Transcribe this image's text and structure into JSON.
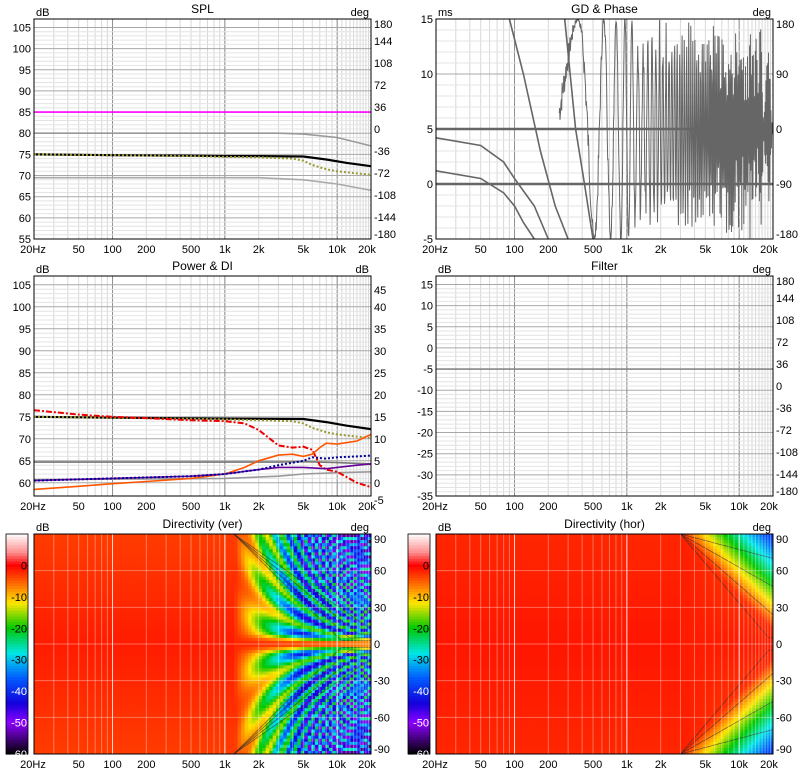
{
  "panels": [
    {
      "id": "spl",
      "title": "SPL",
      "left_unit": "dB",
      "right_unit": "deg",
      "left_ticks": [
        "105",
        "100",
        "95",
        "90",
        "85",
        "80",
        "75",
        "70",
        "65",
        "60",
        "55"
      ],
      "right_ticks": [
        "180",
        "144",
        "108",
        "72",
        "36",
        "0",
        "-36",
        "-72",
        "-108",
        "-144",
        "-180"
      ],
      "x_ticks": [
        "20Hz",
        "50",
        "100",
        "200",
        "500",
        "1k",
        "2k",
        "5k",
        "10k",
        "20k"
      ],
      "chart_data": {
        "type": "line",
        "xscale": "log",
        "xlim": [
          20,
          20000
        ],
        "ylim": [
          55,
          107
        ],
        "series": [
          {
            "color": "#ff00ff",
            "x": [
              20,
              20000
            ],
            "y": [
              85,
              85
            ]
          },
          {
            "color": "#999999",
            "x": [
              20,
              3000,
              5000,
              10000,
              20000
            ],
            "y": [
              80,
              80,
              79.8,
              79,
              77
            ]
          },
          {
            "color": "#aaaaaa",
            "x": [
              20,
              2000,
              5000,
              10000,
              20000
            ],
            "y": [
              69.5,
              69.5,
              69,
              68,
              66.5
            ]
          },
          {
            "color": "#000000",
            "x": [
              20,
              50,
              100,
              500,
              1000,
              2000,
              5000,
              8000,
              12000,
              20000
            ],
            "y": [
              75,
              74.9,
              74.8,
              74.7,
              74.6,
              74.6,
              74.5,
              73.8,
              73,
              72.2
            ]
          },
          {
            "color": "#999933",
            "dash": true,
            "x": [
              20,
              100,
              500,
              1000,
              2000,
              4000,
              5000,
              6000,
              8000,
              10000,
              15000,
              20000
            ],
            "y": [
              75,
              74.8,
              74.6,
              74.4,
              74.3,
              74,
              73.5,
              72.5,
              71.5,
              71,
              70.5,
              70.2
            ]
          }
        ]
      }
    },
    {
      "id": "gd",
      "title": "GD & Phase",
      "left_unit": "ms",
      "right_unit": "deg",
      "left_ticks": [
        "15",
        "10",
        "5",
        "0",
        "-5"
      ],
      "right_ticks": [
        "180",
        "90",
        "0",
        "-90",
        "-180"
      ],
      "x_ticks": [
        "20Hz",
        "50",
        "100",
        "200",
        "500",
        "1k",
        "2k",
        "5k",
        "10k",
        "20k"
      ],
      "chart_data": {
        "type": "line",
        "xscale": "log",
        "xlim": [
          20,
          20000
        ],
        "ylim": [
          -5,
          15
        ],
        "series": [
          {
            "color": "#666666",
            "x": [
              20,
              20000
            ],
            "y": [
              5,
              5
            ]
          },
          {
            "color": "#666666",
            "x": [
              20,
              20000
            ],
            "y": [
              0,
              0
            ]
          },
          {
            "color": "#666666",
            "x": [
              20,
              50,
              80,
              100,
              150,
              200
            ],
            "y": [
              4.2,
              3.5,
              2,
              0.5,
              -2,
              -5
            ]
          },
          {
            "color": "#666666",
            "x": [
              20,
              50,
              80,
              100,
              120,
              150
            ],
            "y": [
              1.2,
              0.5,
              -0.8,
              -2,
              -3.5,
              -5
            ]
          },
          {
            "color": "#666666",
            "x": [
              90,
              120,
              170,
              230,
              300
            ],
            "y": [
              15,
              10,
              3,
              -2,
              -5
            ]
          },
          {
            "color": "#666666",
            "x": [
              280,
              350,
              420,
              500
            ],
            "y": [
              15,
              5,
              0,
              -5
            ]
          }
        ],
        "phase_oscillation": {
          "start_hz": 250,
          "end_hz": 20000,
          "range_deg": [
            -180,
            180
          ]
        }
      }
    },
    {
      "id": "power",
      "title": "Power & DI",
      "left_unit": "dB",
      "right_unit": "dB",
      "left_ticks": [
        "105",
        "100",
        "95",
        "90",
        "85",
        "80",
        "75",
        "70",
        "65",
        "60"
      ],
      "right_ticks": [
        "45",
        "40",
        "35",
        "30",
        "25",
        "20",
        "15",
        "10",
        "5",
        "0",
        "-5"
      ],
      "x_ticks": [
        "20Hz",
        "50",
        "100",
        "200",
        "500",
        "1k",
        "2k",
        "5k",
        "10k",
        "20k"
      ],
      "chart_data": {
        "type": "line",
        "xscale": "log",
        "xlim": [
          20,
          20000
        ],
        "ylim": [
          57,
          107
        ],
        "series": [
          {
            "color": "#000000",
            "x": [
              20,
              100,
              1000,
              5000,
              8000,
              12000,
              20000
            ],
            "y": [
              75,
              74.8,
              74.6,
              74.5,
              73.8,
              73,
              72.2
            ]
          },
          {
            "color": "#999933",
            "dash": true,
            "x": [
              20,
              100,
              1000,
              4000,
              5000,
              6000,
              8000,
              10000,
              15000,
              20000
            ],
            "y": [
              75,
              74.8,
              74.4,
              74,
              73.5,
              72.5,
              71.5,
              71,
              70.5,
              70.2
            ]
          },
          {
            "color": "#777777",
            "x": [
              20,
              1000,
              3000,
              5000,
              10000,
              20000
            ],
            "y": [
              64.7,
              64.7,
              64.7,
              64.8,
              64.6,
              64.3
            ]
          },
          {
            "color": "#999999",
            "x": [
              20,
              1000,
              3000,
              5000,
              10000,
              20000
            ],
            "y": [
              60.7,
              61,
              61.5,
              62,
              62.3,
              62.5
            ]
          },
          {
            "color": "#ee0000",
            "dashdot": true,
            "x": [
              20,
              50,
              100,
              200,
              500,
              1000,
              1500,
              2000,
              3000,
              4000,
              5000,
              6000,
              7000,
              8000,
              10000,
              15000,
              20000
            ],
            "y": [
              76.5,
              75.5,
              75,
              74.7,
              74.2,
              74,
              73.5,
              72,
              68.5,
              68,
              68.2,
              67.5,
              64,
              63,
              62.5,
              60,
              59
            ]
          },
          {
            "color": "#ff5500",
            "x": [
              20,
              50,
              100,
              200,
              500,
              1000,
              1500,
              2000,
              3000,
              4000,
              5000,
              6000,
              7000,
              8000,
              10000,
              15000,
              20000
            ],
            "y": [
              58.5,
              59.2,
              59.8,
              60.3,
              61,
              62,
              63.5,
              65,
              66.3,
              66.5,
              66,
              66.5,
              68,
              69,
              68.8,
              69.5,
              71
            ]
          },
          {
            "color": "#660099",
            "x": [
              20,
              100,
              500,
              1000,
              2000,
              3000,
              5000,
              8000,
              10000,
              15000,
              20000
            ],
            "y": [
              60.5,
              61,
              61.5,
              62,
              63,
              63.5,
              63.5,
              63.2,
              63.5,
              64,
              64.3
            ]
          },
          {
            "color": "#000099",
            "dash": true,
            "x": [
              20,
              100,
              500,
              1000,
              2000,
              3000,
              5000,
              6000,
              8000,
              10000,
              15000,
              20000
            ],
            "y": [
              60.5,
              61,
              61.5,
              62,
              63,
              64,
              65,
              65.8,
              65.5,
              65.8,
              66,
              66.2
            ]
          }
        ]
      }
    },
    {
      "id": "filter",
      "title": "Filter",
      "left_unit": "dB",
      "right_unit": "deg",
      "left_ticks": [
        "15",
        "10",
        "5",
        "0",
        "-5",
        "-10",
        "-15",
        "-20",
        "-25",
        "-30",
        "-35"
      ],
      "right_ticks": [
        "180",
        "144",
        "108",
        "72",
        "36",
        "0",
        "-36",
        "-72",
        "-108",
        "-144",
        "-180"
      ],
      "x_ticks": [
        "20Hz",
        "50",
        "100",
        "200",
        "500",
        "1k",
        "2k",
        "5k",
        "10k",
        "20k"
      ],
      "chart_data": {
        "type": "line",
        "xscale": "log",
        "xlim": [
          20,
          20000
        ],
        "ylim": [
          -35,
          17
        ],
        "series": [
          {
            "color": "#888888",
            "x": [
              20,
              20000
            ],
            "y": [
              -5,
              -5
            ]
          }
        ]
      }
    },
    {
      "id": "dir_ver",
      "title": "Directivity (ver)",
      "left_unit": "dB",
      "right_unit": "deg",
      "left_ticks": [
        "0",
        "-10",
        "-20",
        "-30",
        "-40",
        "-50",
        "-60"
      ],
      "right_ticks": [
        "90",
        "60",
        "30",
        "0",
        "-30",
        "-60",
        "-90"
      ],
      "x_ticks": [
        "20Hz",
        "50",
        "100",
        "200",
        "500",
        "1k",
        "2k",
        "5k",
        "10k",
        "20k"
      ],
      "chart_data": {
        "type": "heatmap",
        "xscale": "log",
        "xlim": [
          20,
          20000
        ],
        "ylim": [
          -90,
          90
        ],
        "zlim": [
          -60,
          10
        ],
        "mode": "vertical-lobing"
      }
    },
    {
      "id": "dir_hor",
      "title": "Directivity (hor)",
      "left_unit": "dB",
      "right_unit": "deg",
      "left_ticks": [
        "0",
        "-10",
        "-20",
        "-30",
        "-40",
        "-50",
        "-60"
      ],
      "right_ticks": [
        "90",
        "60",
        "30",
        "0",
        "-30",
        "-60",
        "-90"
      ],
      "x_ticks": [
        "20Hz",
        "50",
        "100",
        "200",
        "500",
        "1k",
        "2k",
        "5k",
        "10k",
        "20k"
      ],
      "chart_data": {
        "type": "heatmap",
        "xscale": "log",
        "xlim": [
          20,
          20000
        ],
        "ylim": [
          -90,
          90
        ],
        "zlim": [
          -60,
          10
        ],
        "mode": "horizontal-smooth"
      }
    }
  ],
  "colorbar": {
    "stops": [
      "#ffffff",
      "#ff0000",
      "#ff8800",
      "#ffff00",
      "#00cc00",
      "#00ffff",
      "#0000ff",
      "#8800ff",
      "#000000"
    ]
  }
}
